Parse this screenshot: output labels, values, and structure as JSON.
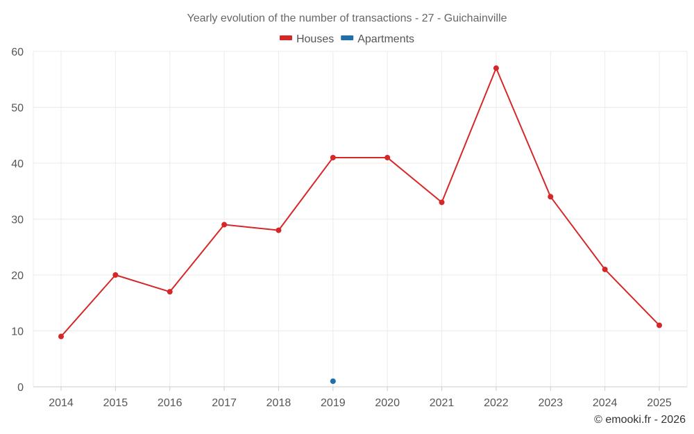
{
  "chart_data": {
    "type": "line",
    "title": "Yearly evolution of the number of transactions - 27 - Guichainville",
    "categories": [
      "2014",
      "2015",
      "2016",
      "2017",
      "2018",
      "2019",
      "2020",
      "2021",
      "2022",
      "2023",
      "2024",
      "2025"
    ],
    "series": [
      {
        "name": "Houses",
        "color": "#d62728",
        "values": [
          9,
          20,
          17,
          29,
          28,
          41,
          41,
          33,
          57,
          34,
          21,
          11
        ]
      },
      {
        "name": "Apartments",
        "color": "#1f6faa",
        "values": [
          null,
          null,
          null,
          null,
          null,
          1,
          null,
          null,
          null,
          null,
          null,
          null
        ]
      }
    ],
    "ylim": [
      0,
      60
    ],
    "yticks": [
      0,
      10,
      20,
      30,
      40,
      50,
      60
    ],
    "grid": true,
    "legend_position": "top-center"
  },
  "credit": "© emooki.fr - 2026"
}
